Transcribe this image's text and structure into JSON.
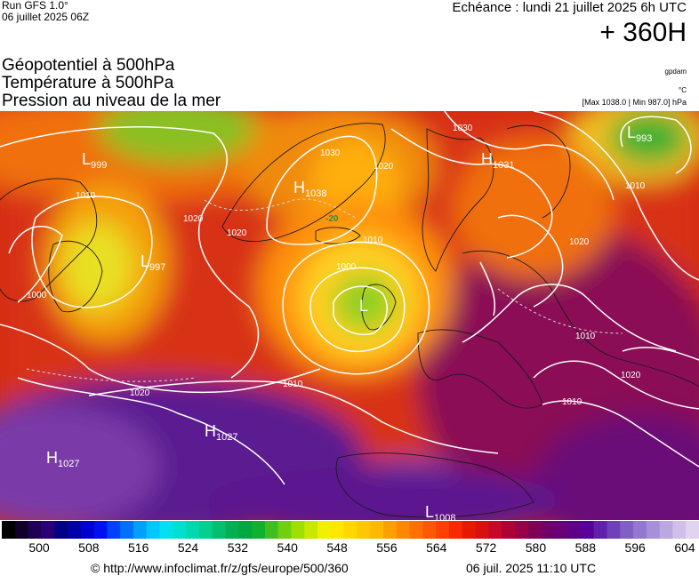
{
  "header": {
    "run_label": "Run GFS 1.0°",
    "run_date": "06 juillet 2025 06Z",
    "echeance": "Echéance : lundi 21 juillet 2025 6h UTC",
    "forecast_hour": "+ 360H"
  },
  "titles": {
    "line1": "Géopotentiel à 500hPa",
    "line2": "Température à 500hPa",
    "line3": "Pression au niveau de la mer"
  },
  "units": {
    "geopotential": "gpdam",
    "temperature": "°C",
    "minmax": "[Max 1038.0 | Min 987.0] hPa"
  },
  "map": {
    "pressure_centers": [
      {
        "type": "L",
        "value": "999"
      },
      {
        "type": "L",
        "value": "997"
      },
      {
        "type": "H",
        "value": "1038"
      },
      {
        "type": "L",
        "value": "993"
      },
      {
        "type": "H",
        "value": "1031"
      },
      {
        "type": "L",
        "value": ""
      },
      {
        "type": "H",
        "value": "1027"
      },
      {
        "type": "H",
        "value": "1027"
      },
      {
        "type": "L",
        "value": "1008"
      }
    ],
    "isobar_labels": [
      "1010",
      "1020",
      "1030",
      "1000",
      "1020",
      "1010",
      "1020",
      "1020",
      "1010",
      "1010",
      "1020",
      "1030",
      "1010",
      "1010",
      "1000",
      "1020"
    ],
    "temperature_labels": [
      "-20"
    ]
  },
  "colorbar": {
    "colors": [
      "#000000",
      "#10002a",
      "#1f0055",
      "#2b0075",
      "#000080",
      "#0000a8",
      "#0000d0",
      "#0010f0",
      "#0040ff",
      "#0070ff",
      "#00a0ff",
      "#00c8ff",
      "#00e0f0",
      "#00e0d0",
      "#00d8b0",
      "#00d090",
      "#00c070",
      "#00b050",
      "#00a840",
      "#10b030",
      "#40c020",
      "#70d010",
      "#a0e000",
      "#c8e800",
      "#f0f000",
      "#ffe800",
      "#ffd800",
      "#ffc800",
      "#ffb800",
      "#ffa000",
      "#ff8800",
      "#ff7000",
      "#ff5800",
      "#ff4000",
      "#f82800",
      "#e81800",
      "#d81010",
      "#c80828",
      "#b00038",
      "#980048",
      "#800058",
      "#700068",
      "#680078",
      "#600088",
      "#580098",
      "#6020a8",
      "#7040b8",
      "#8060c4",
      "#9478d0",
      "#a890d8",
      "#bca8e0",
      "#d0c0e8",
      "#e0d4f0"
    ],
    "ticks": [
      "500",
      "508",
      "516",
      "524",
      "532",
      "540",
      "548",
      "556",
      "564",
      "572",
      "580",
      "588",
      "596",
      "604"
    ]
  },
  "footer": {
    "copyright": "© http://www.infoclimat.fr/z/gfs/europe/500/360",
    "timestamp": "06 juil. 2025 11:10 UTC"
  }
}
